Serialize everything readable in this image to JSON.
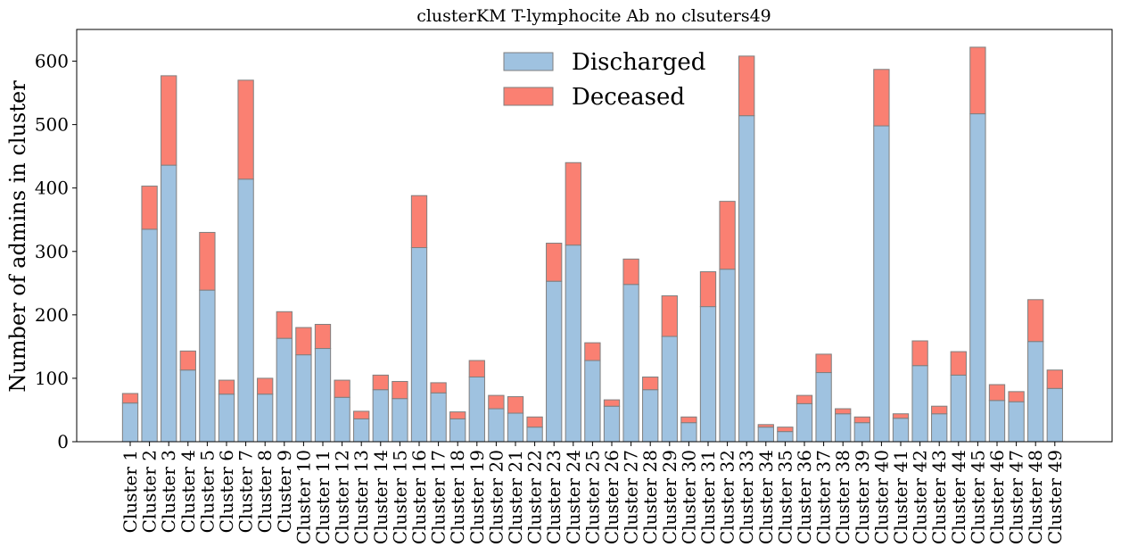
{
  "chart_data": {
    "type": "bar",
    "stacked": true,
    "title": "clusterKM T-lymphocite Ab no clsuters49",
    "xlabel": "",
    "ylabel": "Number of admins in cluster",
    "ylim": [
      0,
      650
    ],
    "yticks": [
      0,
      100,
      200,
      300,
      400,
      500,
      600
    ],
    "grid": false,
    "legend_position": "top-center",
    "categories": [
      "Cluster 1",
      "Cluster 2",
      "Cluster 3",
      "Cluster 4",
      "Cluster 5",
      "Cluster 6",
      "Cluster 7",
      "Cluster 8",
      "Cluster 9",
      "Cluster 10",
      "Cluster 11",
      "Cluster 12",
      "Cluster 13",
      "Cluster 14",
      "Cluster 15",
      "Cluster 16",
      "Cluster 17",
      "Cluster 18",
      "Cluster 19",
      "Cluster 20",
      "Cluster 21",
      "Cluster 22",
      "Cluster 23",
      "Cluster 24",
      "Cluster 25",
      "Cluster 26",
      "Cluster 27",
      "Cluster 28",
      "Cluster 29",
      "Cluster 30",
      "Cluster 31",
      "Cluster 32",
      "Cluster 33",
      "Cluster 34",
      "Cluster 35",
      "Cluster 36",
      "Cluster 37",
      "Cluster 38",
      "Cluster 39",
      "Cluster 40",
      "Cluster 41",
      "Cluster 42",
      "Cluster 43",
      "Cluster 44",
      "Cluster 45",
      "Cluster 46",
      "Cluster 47",
      "Cluster 48",
      "Cluster 49"
    ],
    "series": [
      {
        "name": "Discharged",
        "color": "#9fc2e0",
        "values": [
          61,
          335,
          436,
          113,
          239,
          75,
          414,
          75,
          163,
          137,
          147,
          70,
          36,
          82,
          68,
          306,
          77,
          36,
          102,
          52,
          45,
          23,
          253,
          310,
          128,
          56,
          248,
          82,
          166,
          30,
          213,
          272,
          514,
          23,
          16,
          60,
          109,
          44,
          30,
          498,
          37,
          120,
          44,
          105,
          517,
          65,
          63,
          158,
          84
        ]
      },
      {
        "name": "Deceased",
        "color": "#fa8072",
        "values": [
          15,
          68,
          141,
          30,
          91,
          22,
          156,
          25,
          42,
          43,
          38,
          27,
          12,
          23,
          27,
          82,
          16,
          11,
          26,
          21,
          26,
          16,
          60,
          130,
          28,
          10,
          40,
          20,
          64,
          9,
          55,
          107,
          94,
          4,
          7,
          13,
          29,
          8,
          9,
          89,
          7,
          39,
          12,
          37,
          105,
          25,
          16,
          66,
          29
        ]
      }
    ]
  }
}
